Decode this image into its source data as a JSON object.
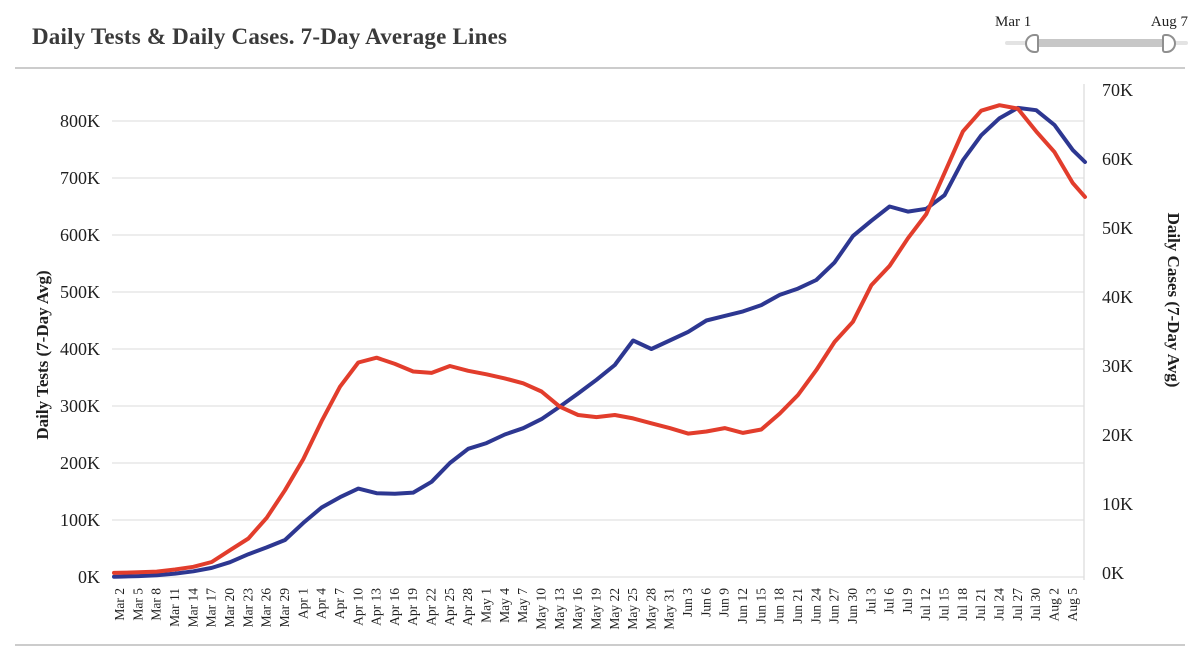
{
  "page": {
    "title": "Daily Tests & Daily Cases. 7-Day Average Lines"
  },
  "slider": {
    "start_label": "Mar 1",
    "end_label": "Aug 7"
  },
  "chart_data": {
    "type": "line",
    "title": "Daily Tests & Daily Cases. 7-Day Average Lines",
    "grid": true,
    "legend_position": "none",
    "x_tick_labels": [
      "Mar 2",
      "Mar 5",
      "Mar 8",
      "Mar 11",
      "Mar 14",
      "Mar 17",
      "Mar 20",
      "Mar 23",
      "Mar 26",
      "Mar 29",
      "Apr 1",
      "Apr 4",
      "Apr 7",
      "Apr 10",
      "Apr 13",
      "Apr 16",
      "Apr 19",
      "Apr 22",
      "Apr 25",
      "Apr 28",
      "May 1",
      "May 4",
      "May 7",
      "May 10",
      "May 13",
      "May 16",
      "May 19",
      "May 22",
      "May 25",
      "May 28",
      "May 31",
      "Jun 3",
      "Jun 6",
      "Jun 9",
      "Jun 12",
      "Jun 15",
      "Jun 18",
      "Jun 21",
      "Jun 24",
      "Jun 27",
      "Jun 30",
      "Jul 3",
      "Jul 6",
      "Jul 9",
      "Jul 12",
      "Jul 15",
      "Jul 18",
      "Jul 21",
      "Jul 24",
      "Jul 27",
      "Jul 30",
      "Aug 2",
      "Aug 5"
    ],
    "x_days": [
      0,
      1,
      4,
      7,
      10,
      13,
      16,
      19,
      22,
      25,
      28,
      31,
      34,
      37,
      40,
      43,
      46,
      49,
      52,
      55,
      58,
      61,
      64,
      67,
      70,
      73,
      76,
      79,
      82,
      85,
      88,
      91,
      94,
      97,
      100,
      103,
      106,
      109,
      112,
      115,
      118,
      121,
      124,
      127,
      130,
      133,
      136,
      139,
      142,
      145,
      148,
      151,
      154,
      157,
      159
    ],
    "x_range_labels": [
      "Mar 1",
      "Aug 7"
    ],
    "left_axis": {
      "title": "Daily Tests (7-Day Avg)",
      "ticks": [
        "0K",
        "100K",
        "200K",
        "300K",
        "400K",
        "500K",
        "600K",
        "700K",
        "800K"
      ],
      "tick_values_K": [
        0,
        100,
        200,
        300,
        400,
        500,
        600,
        700,
        800
      ],
      "range_K": [
        0,
        800
      ],
      "color": "#2d3791"
    },
    "right_axis": {
      "title": "Daily Cases (7-Day Avg)",
      "ticks": [
        "0K",
        "10K",
        "20K",
        "30K",
        "40K",
        "50K",
        "60K",
        "70K"
      ],
      "tick_values_K": [
        0,
        10,
        20,
        30,
        40,
        50,
        60,
        70
      ],
      "range_K": [
        0,
        70
      ],
      "color": "#e23d2c"
    },
    "series": [
      {
        "name": "Daily Tests (7-Day Avg)",
        "axis": "left",
        "color": "#2d3791",
        "values_K": [
          0.5,
          0.7,
          1.5,
          3,
          6,
          10,
          16,
          26,
          40,
          52,
          65,
          95,
          122,
          140,
          155,
          147,
          146,
          148,
          167,
          200,
          225,
          235,
          250,
          261,
          277,
          299,
          322,
          346,
          372,
          415,
          400,
          415,
          430,
          450,
          458,
          466,
          477,
          495,
          506,
          521,
          552,
          598,
          625,
          650,
          641,
          646,
          670,
          731,
          775,
          805,
          823,
          819,
          793,
          749,
          728
        ]
      },
      {
        "name": "Daily Cases (7-Day Avg)",
        "axis": "right",
        "color": "#e23d2c",
        "values_K": [
          0.02,
          0.03,
          0.1,
          0.2,
          0.5,
          0.9,
          1.6,
          3.3,
          5,
          8,
          12,
          16.5,
          22,
          27,
          30.5,
          31.2,
          30.3,
          29.2,
          29,
          30,
          29.3,
          28.8,
          28.2,
          27.5,
          26.3,
          24.1,
          22.9,
          22.6,
          22.9,
          22.4,
          21.7,
          21,
          20.2,
          20.5,
          21,
          20.3,
          20.8,
          23.1,
          25.8,
          29.4,
          33.5,
          36.4,
          41.7,
          44.5,
          48.5,
          52,
          58,
          64,
          67,
          67.8,
          67.3,
          64,
          61,
          56.5,
          54.5
        ]
      }
    ],
    "colors": {
      "grid": "#e2e2e2",
      "plot_border": "#dddddd",
      "text": "#1f1f1f"
    }
  }
}
